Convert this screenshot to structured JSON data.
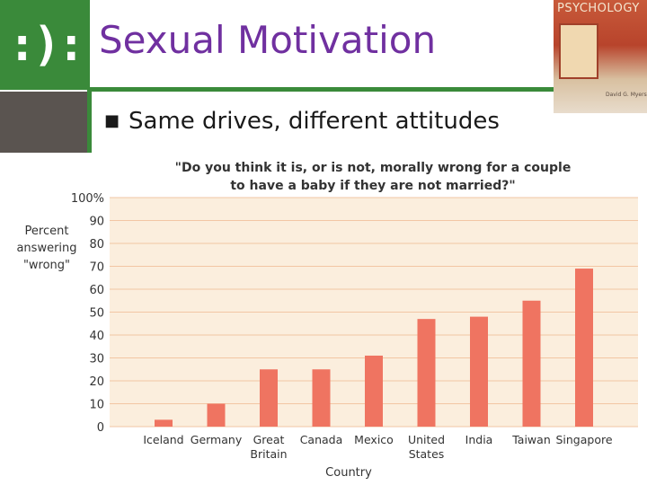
{
  "slide": {
    "logo_text": ":):",
    "title": "Sexual Motivation",
    "bullet": "Same drives, different attitudes",
    "book_cover_title": "PSYCHOLOGY",
    "book_cover_author": "David G. Myers"
  },
  "colors": {
    "accent_green": "#3a8a3a",
    "title_purple": "#7030a0",
    "plot_background": "#fbeedd",
    "bar_color": "#ef7461",
    "grid": "#f2c6a4"
  },
  "chart_data": {
    "type": "bar",
    "title_lines": [
      "\"Do you think it is, or is not, morally wrong for a couple",
      "to have a baby if they are not married?\""
    ],
    "ylabel_lines": [
      "Percent",
      "answering",
      "\"wrong\""
    ],
    "xlabel": "Country",
    "categories": [
      [
        "Iceland"
      ],
      [
        "Germany"
      ],
      [
        "Great",
        "Britain"
      ],
      [
        "Canada"
      ],
      [
        "Mexico"
      ],
      [
        "United",
        "States"
      ],
      [
        "India"
      ],
      [
        "Taiwan"
      ],
      [
        "Singapore"
      ]
    ],
    "values": [
      3,
      10,
      25,
      25,
      31,
      47,
      48,
      55,
      69
    ],
    "yticks": [
      "0",
      "10",
      "20",
      "30",
      "40",
      "50",
      "60",
      "70",
      "80",
      "90",
      "100%"
    ],
    "ylim": [
      0,
      100
    ],
    "grid": true
  }
}
